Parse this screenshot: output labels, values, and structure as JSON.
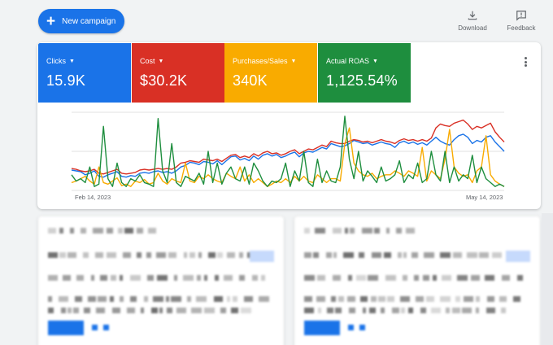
{
  "toolbar": {
    "new_campaign_label": "New campaign",
    "download_label": "Download",
    "feedback_label": "Feedback"
  },
  "metrics": [
    {
      "label": "Clicks",
      "value": "15.9K",
      "color": "#1a73e8"
    },
    {
      "label": "Cost",
      "value": "$30.2K",
      "color": "#d93025"
    },
    {
      "label": "Purchases/Sales",
      "value": "340K",
      "color": "#f9ab00"
    },
    {
      "label": "Actual ROAS",
      "value": "1,125.54%",
      "color": "#1e8e3e"
    }
  ],
  "chart_data": {
    "type": "line",
    "x_start": "Feb 14, 2023",
    "x_end": "May 14, 2023",
    "grid": true,
    "series": [
      {
        "name": "Clicks",
        "color": "#1a73e8",
        "values": [
          0.26,
          0.25,
          0.24,
          0.2,
          0.22,
          0.25,
          0.18,
          0.17,
          0.2,
          0.22,
          0.24,
          0.18,
          0.17,
          0.19,
          0.18,
          0.22,
          0.23,
          0.22,
          0.24,
          0.25,
          0.23,
          0.24,
          0.22,
          0.25,
          0.3,
          0.32,
          0.36,
          0.35,
          0.33,
          0.37,
          0.36,
          0.34,
          0.38,
          0.33,
          0.38,
          0.43,
          0.44,
          0.39,
          0.41,
          0.38,
          0.44,
          0.4,
          0.45,
          0.47,
          0.44,
          0.46,
          0.42,
          0.44,
          0.47,
          0.49,
          0.43,
          0.48,
          0.5,
          0.49,
          0.52,
          0.55,
          0.53,
          0.6,
          0.58,
          0.56,
          0.57,
          0.6,
          0.64,
          0.62,
          0.6,
          0.61,
          0.58,
          0.6,
          0.62,
          0.6,
          0.59,
          0.55,
          0.61,
          0.63,
          0.6,
          0.62,
          0.59,
          0.61,
          0.58,
          0.63,
          0.68,
          0.63,
          0.6,
          0.58,
          0.65,
          0.7,
          0.72,
          0.68,
          0.6,
          0.64,
          0.62,
          0.68,
          0.7,
          0.62,
          0.56,
          0.5
        ]
      },
      {
        "name": "Cost",
        "color": "#d93025",
        "values": [
          0.28,
          0.27,
          0.25,
          0.24,
          0.25,
          0.27,
          0.22,
          0.21,
          0.23,
          0.25,
          0.27,
          0.22,
          0.21,
          0.22,
          0.23,
          0.26,
          0.27,
          0.26,
          0.27,
          0.28,
          0.27,
          0.28,
          0.27,
          0.3,
          0.35,
          0.36,
          0.38,
          0.37,
          0.36,
          0.4,
          0.39,
          0.38,
          0.4,
          0.37,
          0.41,
          0.45,
          0.46,
          0.42,
          0.44,
          0.42,
          0.47,
          0.44,
          0.48,
          0.5,
          0.47,
          0.48,
          0.45,
          0.47,
          0.5,
          0.52,
          0.47,
          0.5,
          0.53,
          0.52,
          0.55,
          0.58,
          0.56,
          0.63,
          0.61,
          0.6,
          0.6,
          0.63,
          0.65,
          0.64,
          0.62,
          0.63,
          0.61,
          0.63,
          0.65,
          0.63,
          0.62,
          0.6,
          0.64,
          0.66,
          0.64,
          0.65,
          0.63,
          0.65,
          0.63,
          0.67,
          0.8,
          0.85,
          0.83,
          0.82,
          0.86,
          0.88,
          0.9,
          0.85,
          0.78,
          0.82,
          0.8,
          0.83,
          0.86,
          0.75,
          0.68,
          0.62
        ]
      },
      {
        "name": "Purchases/Sales",
        "color": "#f9ab00",
        "values": [
          0.1,
          0.12,
          0.15,
          0.18,
          0.12,
          0.08,
          0.3,
          0.1,
          0.08,
          0.12,
          0.16,
          0.06,
          0.08,
          0.05,
          0.12,
          0.1,
          0.14,
          0.08,
          0.1,
          0.22,
          0.12,
          0.08,
          0.15,
          0.12,
          0.1,
          0.35,
          0.12,
          0.1,
          0.18,
          0.15,
          0.2,
          0.15,
          0.12,
          0.1,
          0.22,
          0.18,
          0.15,
          0.3,
          0.12,
          0.2,
          0.1,
          0.15,
          0.1,
          0.05,
          0.08,
          0.12,
          0.1,
          0.15,
          0.1,
          0.18,
          0.12,
          0.18,
          0.12,
          0.1,
          0.2,
          0.15,
          0.1,
          0.15,
          0.15,
          0.12,
          0.6,
          0.8,
          0.35,
          0.25,
          0.2,
          0.18,
          0.22,
          0.15,
          0.18,
          0.2,
          0.2,
          0.25,
          0.22,
          0.18,
          0.25,
          0.22,
          0.18,
          0.55,
          0.12,
          0.25,
          0.2,
          0.15,
          0.4,
          0.78,
          0.3,
          0.22,
          0.18,
          0.2,
          0.1,
          0.25,
          0.3,
          0.7,
          0.2,
          0.12,
          0.08,
          0.05
        ]
      },
      {
        "name": "Actual ROAS",
        "color": "#1e8e3e",
        "values": [
          0.2,
          0.12,
          0.15,
          0.1,
          0.3,
          0.05,
          0.08,
          0.82,
          0.15,
          0.05,
          0.35,
          0.1,
          0.05,
          0.15,
          0.12,
          0.2,
          0.1,
          0.08,
          0.05,
          0.92,
          0.25,
          0.1,
          0.6,
          0.1,
          0.05,
          0.18,
          0.15,
          0.12,
          0.22,
          0.08,
          0.5,
          0.1,
          0.35,
          0.08,
          0.22,
          0.3,
          0.15,
          0.12,
          0.3,
          0.08,
          0.35,
          0.25,
          0.12,
          0.05,
          0.12,
          0.1,
          0.15,
          0.35,
          0.05,
          0.25,
          0.12,
          0.5,
          0.1,
          0.05,
          0.4,
          0.1,
          0.25,
          0.12,
          0.1,
          0.3,
          0.95,
          0.4,
          0.15,
          0.5,
          0.12,
          0.25,
          0.18,
          0.1,
          0.3,
          0.12,
          0.15,
          0.2,
          0.38,
          0.1,
          0.2,
          0.15,
          0.35,
          0.1,
          0.15,
          0.5,
          0.2,
          0.12,
          0.5,
          0.1,
          0.3,
          0.12,
          0.2,
          0.15,
          0.45,
          0.1,
          0.3,
          0.15,
          0.1,
          0.05,
          0.08,
          0.05
        ]
      }
    ]
  }
}
